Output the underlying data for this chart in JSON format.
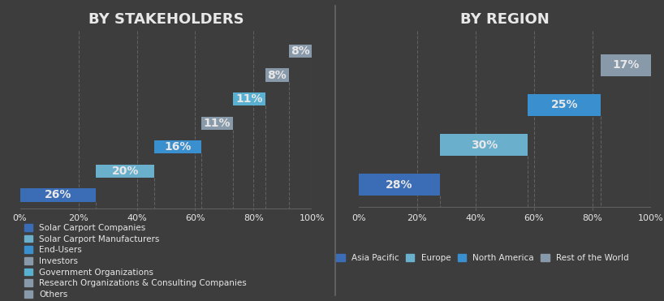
{
  "bg_color": "#3d3d3d",
  "left": {
    "title": "BY STAKEHOLDERS",
    "bars": [
      {
        "label": "Solar Carport Companies",
        "value": 26,
        "color": "#3a6db5"
      },
      {
        "label": "Solar Carport Manufacturers",
        "value": 20,
        "color": "#6ab0cc"
      },
      {
        "label": "End-Users",
        "value": 16,
        "color": "#3a8fcf"
      },
      {
        "label": "Investors",
        "value": 11,
        "color": "#8899aa"
      },
      {
        "label": "Government Organizations",
        "value": 11,
        "color": "#5ab0d0"
      },
      {
        "label": "Research Organizations & Consulting Companies",
        "value": 8,
        "color": "#8899aa"
      },
      {
        "label": "Others",
        "value": 8,
        "color": "#8899aa"
      }
    ]
  },
  "right": {
    "title": "BY REGION",
    "bars": [
      {
        "label": "Asia Pacific",
        "value": 28,
        "color": "#3a6db5"
      },
      {
        "label": "Europe",
        "value": 30,
        "color": "#6ab0cc"
      },
      {
        "label": "North America",
        "value": 25,
        "color": "#3a8fcf"
      },
      {
        "label": "Rest of the World",
        "value": 17,
        "color": "#8899aa"
      }
    ]
  },
  "text_color": "#e8e8e8",
  "grid_color": "#606060",
  "title_fontsize": 13,
  "bar_label_fontsize": 10,
  "tick_fontsize": 8,
  "legend_fontsize": 7.5,
  "divider_color": "#666666"
}
